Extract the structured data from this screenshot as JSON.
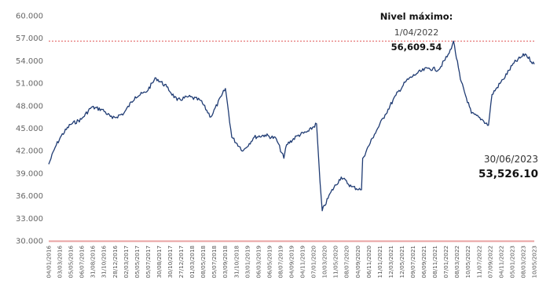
{
  "chart_data": {
    "type": "line",
    "title": "",
    "xlabel": "",
    "ylabel": "",
    "ylim": [
      30000,
      60000
    ],
    "grid": false,
    "y_ticks": [
      "60.000",
      "57.000",
      "54.000",
      "51.000",
      "48.000",
      "45.000",
      "42.000",
      "39.000",
      "36.000",
      "33.000",
      "30.000"
    ],
    "x_ticks": [
      "04/01/2016",
      "03/03/2016",
      "05/05/2016",
      "06/07/2016",
      "31/08/2016",
      "31/10/2016",
      "28/12/2016",
      "02/03/2017",
      "05/05/2017",
      "05/07/2017",
      "30/08/2017",
      "30/10/2017",
      "27/12/2017",
      "01/03/2018",
      "08/05/2018",
      "05/07/2018",
      "03/09/2018",
      "31/10/2018",
      "03/01/2019",
      "06/03/2019",
      "06/05/2019",
      "08/07/2019",
      "04/09/2019",
      "04/11/2019",
      "07/01/2020",
      "10/03/2020",
      "11/05/2020",
      "08/07/2020",
      "04/09/2020",
      "06/11/2020",
      "11/01/2021",
      "12/03/2021",
      "12/05/2021",
      "09/07/2021",
      "06/09/2021",
      "08/11/2021",
      "07/01/2022",
      "08/03/2022",
      "10/05/2022",
      "11/07/2022",
      "07/09/2022",
      "04/11/2022",
      "05/01/2023",
      "08/03/2023",
      "10/05/2023"
    ],
    "series": [
      {
        "color": "#1f3b73",
        "x": [
          "2016-01-04",
          "2016-02-10",
          "2016-03-15",
          "2016-05-05",
          "2016-07-06",
          "2016-08-31",
          "2016-10-31",
          "2016-12-28",
          "2017-03-02",
          "2017-05-05",
          "2017-07-05",
          "2017-08-30",
          "2017-10-30",
          "2017-12-27",
          "2018-03-01",
          "2018-05-08",
          "2018-07-05",
          "2018-09-03",
          "2018-09-25",
          "2018-10-31",
          "2019-01-03",
          "2019-03-06",
          "2019-05-06",
          "2019-07-08",
          "2019-08-20",
          "2019-09-04",
          "2019-11-04",
          "2020-01-07",
          "2020-02-20",
          "2020-03-10",
          "2020-03-23",
          "2020-05-11",
          "2020-07-08",
          "2020-09-04",
          "2020-10-30",
          "2020-11-06",
          "2021-01-11",
          "2021-03-12",
          "2021-05-12",
          "2021-07-09",
          "2021-09-06",
          "2021-11-08",
          "2022-01-07",
          "2022-03-08",
          "2022-04-01",
          "2022-05-10",
          "2022-07-11",
          "2022-09-07",
          "2022-10-15",
          "2022-11-04",
          "2023-01-05",
          "2023-03-08",
          "2023-05-10",
          "2023-06-30"
        ],
        "y": [
          40200,
          42500,
          44000,
          45500,
          46200,
          47800,
          47500,
          46300,
          47000,
          49200,
          49800,
          51700,
          50500,
          48700,
          49200,
          48700,
          46500,
          49300,
          50300,
          43800,
          42000,
          43800,
          44100,
          43600,
          41000,
          42800,
          44000,
          44600,
          45600,
          38000,
          34000,
          36500,
          38500,
          37200,
          36800,
          41000,
          44200,
          46800,
          49400,
          51300,
          52300,
          53000,
          52800,
          55000,
          56609.54,
          51500,
          47000,
          46200,
          45400,
          49500,
          51500,
          53700,
          54900,
          53526.1
        ]
      }
    ],
    "max_line": {
      "y": 56609.54,
      "color": "#e05a5a"
    },
    "annotations": {
      "max_title": "Nivel máximo:",
      "max_date": "1/04/2022",
      "max_value": "56,609.54",
      "end_date": "30/06/2023",
      "end_value": "53,526.10"
    }
  }
}
